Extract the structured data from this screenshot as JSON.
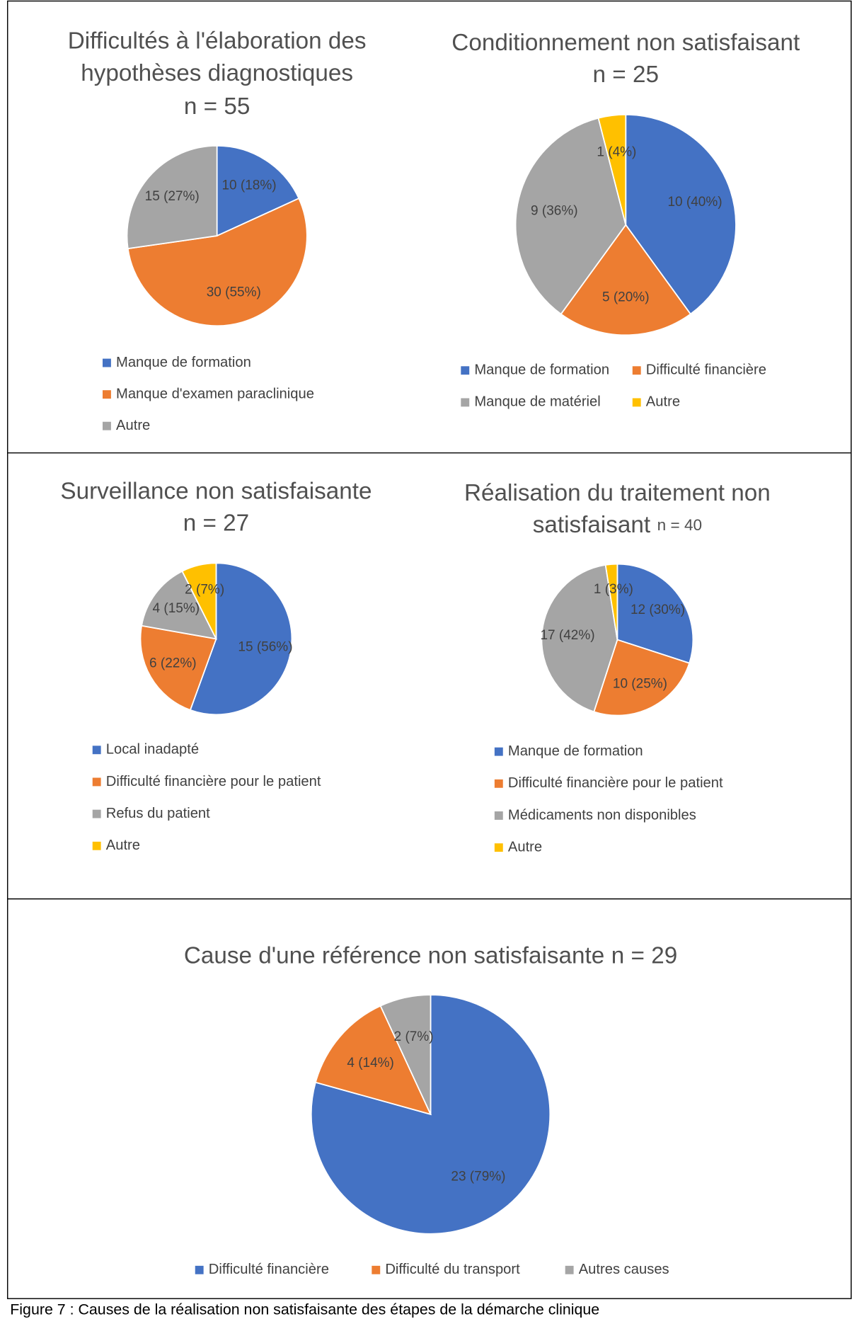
{
  "chart_data": [
    {
      "type": "pie",
      "title": [
        "Difficultés à l'élaboration des",
        "hypothèses diagnostiques"
      ],
      "subtitle": "n = 55",
      "categories": [
        "Manque de formation",
        "Manque d'examen paraclinique",
        "Autre"
      ],
      "values": [
        10,
        30,
        15
      ],
      "value_labels": [
        "10 (18%)",
        "30 (55%)",
        "15 (27%)"
      ],
      "colors": [
        "#4472c4",
        "#ed7d31",
        "#a5a5a5"
      ]
    },
    {
      "type": "pie",
      "title": [
        "Conditionnement non satisfaisant"
      ],
      "subtitle": "n = 25",
      "categories": [
        "Manque de formation",
        "Difficulté financière",
        "Manque de matériel",
        "Autre"
      ],
      "values": [
        10,
        5,
        9,
        1
      ],
      "value_labels": [
        "10 (40%)",
        "5 (20%)",
        "9 (36%)",
        "1 (4%)"
      ],
      "colors": [
        "#4472c4",
        "#ed7d31",
        "#a5a5a5",
        "#ffc000"
      ]
    },
    {
      "type": "pie",
      "title": [
        "Surveillance non satisfaisante"
      ],
      "subtitle": "n = 27",
      "categories": [
        "Local inadapté",
        "Difficulté financière pour le patient",
        "Refus du patient",
        "Autre"
      ],
      "values": [
        15,
        6,
        4,
        2
      ],
      "value_labels": [
        "15 (56%)",
        "6 (22%)",
        "4 (15%)",
        "2 (7%)"
      ],
      "colors": [
        "#4472c4",
        "#ed7d31",
        "#a5a5a5",
        "#ffc000"
      ]
    },
    {
      "type": "pie",
      "title": [
        "Réalisation du traitement non",
        "satisfaisant"
      ],
      "subtitle": "n = 40",
      "categories": [
        "Manque de formation",
        "Difficulté financière pour le patient",
        "Médicaments non disponibles",
        "Autre"
      ],
      "values": [
        12,
        10,
        17,
        1
      ],
      "value_labels": [
        "12 (30%)",
        "10 (25%)",
        "17 (42%)",
        "1 (3%)"
      ],
      "colors": [
        "#4472c4",
        "#ed7d31",
        "#a5a5a5",
        "#ffc000"
      ]
    },
    {
      "type": "pie",
      "title": [
        "Cause d'une référence non satisfaisante"
      ],
      "subtitle": "n = 29",
      "categories": [
        "Difficulté financière",
        "Difficulté du transport",
        "Autres causes"
      ],
      "values": [
        23,
        4,
        2
      ],
      "value_labels": [
        "23 (79%)",
        "4 (14%)",
        "2 (7%)"
      ],
      "colors": [
        "#4472c4",
        "#ed7d31",
        "#a5a5a5"
      ]
    }
  ],
  "caption": "Figure 7 : Causes de la réalisation non satisfaisante des étapes de la démarche clinique"
}
